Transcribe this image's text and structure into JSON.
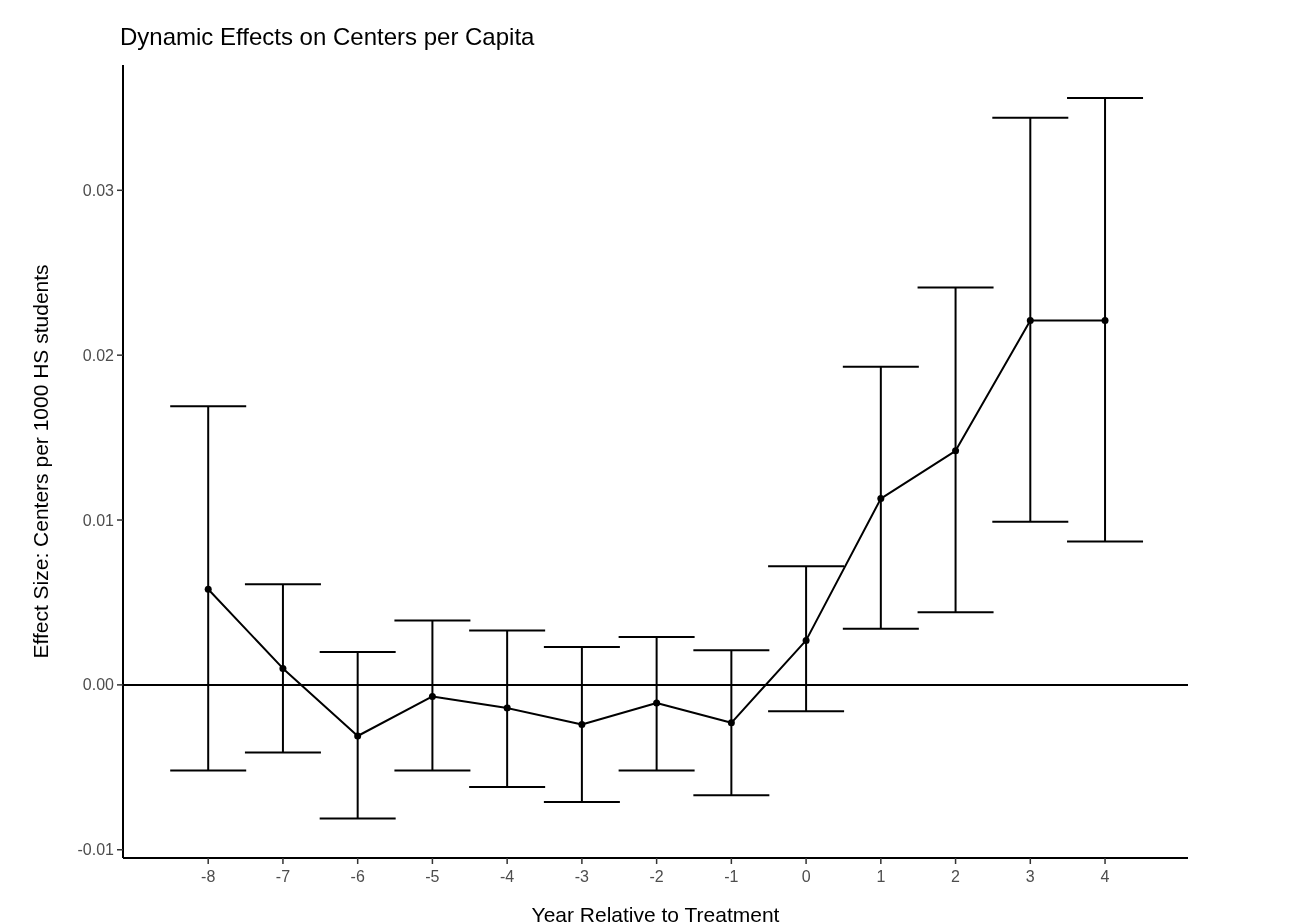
{
  "chart_data": {
    "type": "line",
    "title": "Dynamic Effects on Centers per Capita",
    "xlabel": "Year Relative to Treatment",
    "ylabel": "Effect Size: Centers per 1000 HS students",
    "x": [
      -8,
      -7,
      -6,
      -5,
      -4,
      -3,
      -2,
      -1,
      0,
      1,
      2,
      3,
      4
    ],
    "values": [
      0.0058,
      0.001,
      -0.0031,
      -0.0007,
      -0.0014,
      -0.0024,
      -0.0011,
      -0.0023,
      0.0027,
      0.0113,
      0.0142,
      0.0221,
      0.0221
    ],
    "errors": [
      [
        -0.0052,
        0.0169
      ],
      [
        -0.0041,
        0.0061
      ],
      [
        -0.0081,
        0.002
      ],
      [
        -0.0052,
        0.0039
      ],
      [
        -0.0062,
        0.0033
      ],
      [
        -0.0071,
        0.0023
      ],
      [
        -0.0052,
        0.0029
      ],
      [
        -0.0067,
        0.0021
      ],
      [
        -0.0016,
        0.0072
      ],
      [
        0.0034,
        0.0193
      ],
      [
        0.0044,
        0.0241
      ],
      [
        0.0099,
        0.0344
      ],
      [
        0.0087,
        0.0356
      ]
    ],
    "color": "#000000",
    "xlim": [
      -9.14,
      5.11
    ],
    "xticks": [
      -8,
      -7,
      -6,
      -5,
      -4,
      -3,
      -2,
      -1,
      0,
      1,
      2,
      3,
      4
    ],
    "ylim": [
      -0.0105,
      0.0376
    ],
    "yticks": [
      {
        "value": -0.01,
        "label": "-0.01"
      },
      {
        "value": 0,
        "label": "0.00"
      },
      {
        "value": 0.01,
        "label": "0.01"
      },
      {
        "value": 0.02,
        "label": "0.02"
      },
      {
        "value": 0.03,
        "label": "0.03"
      }
    ],
    "ref_lines": [
      {
        "axis": "y",
        "value": 0,
        "color": "#000000"
      }
    ],
    "marker": "circle",
    "line_style": "solid",
    "grid": false
  }
}
